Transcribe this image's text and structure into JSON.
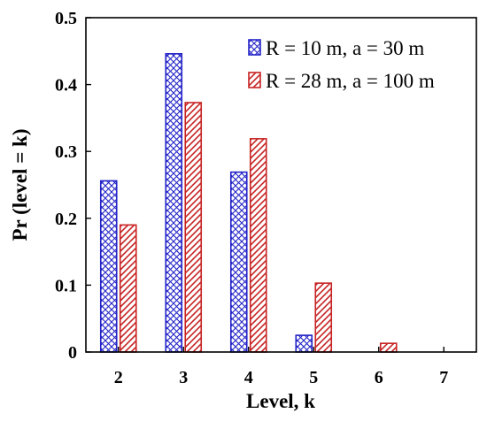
{
  "chart_data": {
    "type": "bar",
    "title": "",
    "xlabel": "Level, k",
    "ylabel": "Pr (level = k)",
    "categories": [
      "2",
      "3",
      "4",
      "5",
      "6",
      "7"
    ],
    "ylim": [
      0,
      0.5
    ],
    "yticks": [
      "0",
      "0.1",
      "0.2",
      "0.3",
      "0.4",
      "0.5"
    ],
    "grid": false,
    "legend_position": "top-right",
    "series": [
      {
        "name": "R = 10 m, a = 30 m",
        "values": [
          0.256,
          0.446,
          0.269,
          0.025,
          0,
          0
        ],
        "color": "#2424c8",
        "pattern": "crosshatch"
      },
      {
        "name": "R = 28 m, a = 100 m",
        "values": [
          0.19,
          0.373,
          0.319,
          0.103,
          0.013,
          0
        ],
        "color": "#c82424",
        "pattern": "diagonal-hatch"
      }
    ]
  }
}
